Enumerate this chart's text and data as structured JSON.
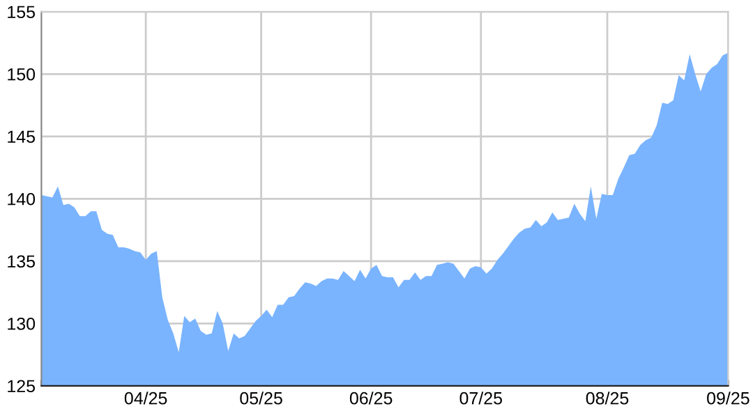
{
  "chart_data": {
    "type": "area",
    "categories": [
      null,
      null,
      null,
      null,
      null,
      null,
      null,
      null,
      null,
      null,
      null,
      null,
      null,
      null,
      null,
      null,
      null,
      null,
      null,
      "04/25",
      null,
      null,
      null,
      null,
      null,
      null,
      null,
      null,
      null,
      null,
      null,
      null,
      null,
      null,
      null,
      null,
      null,
      null,
      null,
      null,
      "05/25",
      null,
      null,
      null,
      null,
      null,
      null,
      null,
      null,
      null,
      null,
      null,
      null,
      null,
      null,
      null,
      null,
      null,
      null,
      null,
      "06/25",
      null,
      null,
      null,
      null,
      null,
      null,
      null,
      null,
      null,
      null,
      null,
      null,
      null,
      null,
      null,
      null,
      null,
      null,
      null,
      "07/25",
      null,
      null,
      null,
      null,
      null,
      null,
      null,
      null,
      null,
      null,
      null,
      null,
      null,
      null,
      null,
      null,
      null,
      null,
      null,
      null,
      null,
      null,
      "08/25",
      null,
      null,
      null,
      null,
      null,
      null,
      null,
      null,
      null,
      null,
      null,
      null,
      null,
      null,
      null,
      null,
      null,
      null,
      null,
      null,
      null,
      "09/25"
    ],
    "series": [
      {
        "color": "#7ab4ff",
        "values": [
          140.3,
          140.2,
          140.1,
          141.0,
          139.5,
          139.6,
          139.3,
          138.6,
          138.6,
          139.0,
          139.0,
          137.5,
          137.2,
          137.1,
          136.1,
          136.1,
          136.0,
          135.8,
          135.7,
          135.1,
          135.6,
          135.8,
          132.1,
          130.3,
          129.2,
          127.7,
          130.6,
          130.1,
          130.4,
          129.4,
          129.1,
          129.2,
          131.0,
          130.0,
          127.8,
          129.2,
          128.8,
          129.0,
          129.6,
          130.2,
          130.6,
          131.1,
          130.5,
          131.5,
          131.5,
          132.1,
          132.2,
          132.8,
          133.3,
          133.2,
          133.0,
          133.4,
          133.6,
          133.6,
          133.5,
          134.2,
          133.8,
          133.4,
          134.3,
          133.6,
          134.4,
          134.7,
          133.8,
          133.7,
          133.7,
          132.9,
          133.5,
          133.5,
          134.1,
          133.5,
          133.8,
          133.8,
          134.7,
          134.8,
          134.9,
          134.8,
          134.2,
          133.6,
          134.4,
          134.6,
          134.5,
          134.0,
          134.4,
          135.1,
          135.6,
          136.2,
          136.8,
          137.3,
          137.6,
          137.7,
          138.3,
          137.8,
          138.1,
          138.9,
          138.3,
          138.4,
          138.5,
          139.6,
          138.8,
          138.2,
          141.0,
          138.4,
          140.4,
          140.3,
          140.3,
          141.6,
          142.5,
          143.5,
          143.6,
          144.3,
          144.7,
          144.9,
          145.9,
          147.7,
          147.6,
          147.9,
          149.9,
          149.5,
          151.6,
          150.0,
          148.6,
          150.0,
          150.5,
          150.8,
          151.5,
          151.7
        ]
      }
    ],
    "ylim": [
      125,
      155
    ],
    "yticks": [
      125,
      130,
      135,
      140,
      145,
      150,
      155
    ],
    "grid": true
  }
}
